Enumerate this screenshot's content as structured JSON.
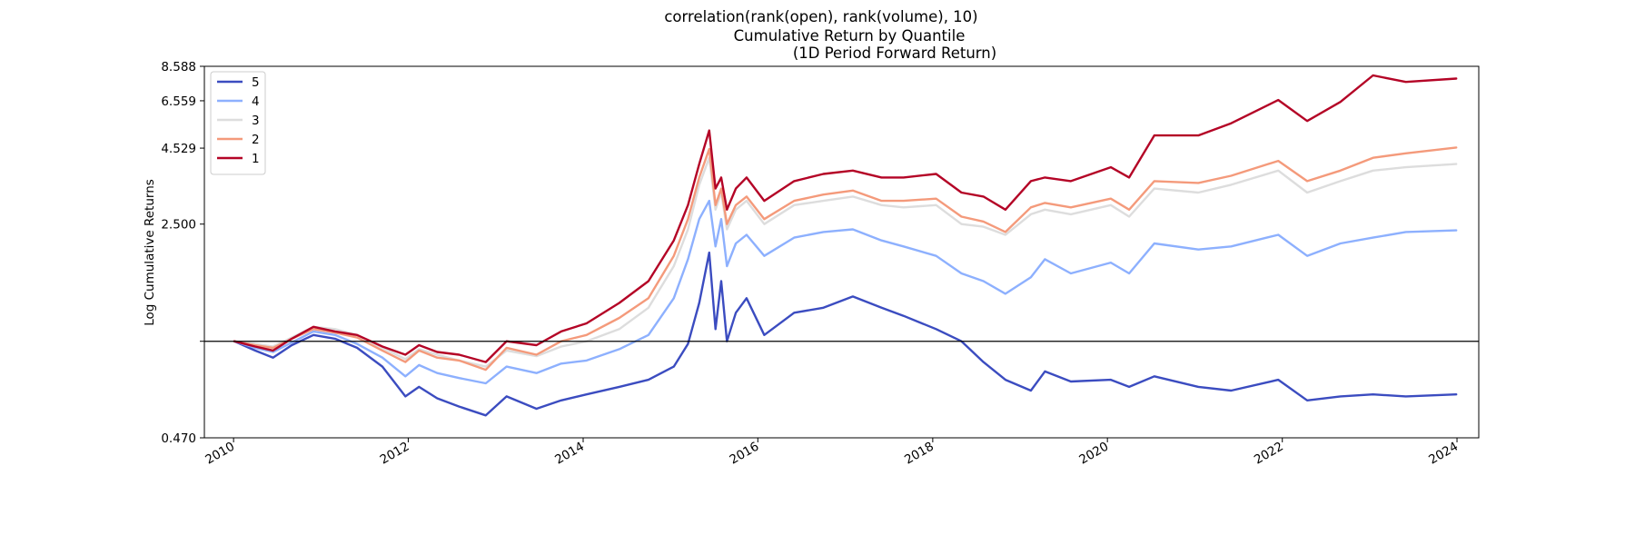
{
  "figure": {
    "suptitle": "correlation(rank(open), rank(volume), 10)",
    "title_line1": "Cumulative Return by Quantile",
    "title_line2": "(1D Period Forward Return)",
    "ylabel": "Log Cumulative Returns"
  },
  "chart_data": {
    "type": "line",
    "title": "Cumulative Return by Quantile (1D Period Forward Return)",
    "ylabel": "Log Cumulative Returns",
    "xlabel": "",
    "y_scale": "log",
    "ylim": [
      0.47,
      8.588
    ],
    "xlim": [
      "2009-09-01",
      "2024-04-01"
    ],
    "y_ticks": [
      {
        "value": 0.47,
        "label": "0.470"
      },
      {
        "value": 1.0,
        "label": ""
      },
      {
        "value": 2.5,
        "label": "2.500"
      },
      {
        "value": 4.529,
        "label": "4.529"
      },
      {
        "value": 6.559,
        "label": "6.559"
      },
      {
        "value": 8.588,
        "label": "8.588"
      }
    ],
    "x_ticks": [
      "2010",
      "2012",
      "2014",
      "2016",
      "2018",
      "2020",
      "2022",
      "2024"
    ],
    "reference_line": 1.0,
    "grid": false,
    "legend_position": "upper-left",
    "series": [
      {
        "name": "5",
        "color": "#3b4cc0",
        "points": [
          [
            "2010-01-04",
            1.0
          ],
          [
            "2010-04-01",
            0.93
          ],
          [
            "2010-06-15",
            0.88
          ],
          [
            "2010-09-01",
            0.97
          ],
          [
            "2010-12-01",
            1.05
          ],
          [
            "2011-03-01",
            1.02
          ],
          [
            "2011-06-01",
            0.95
          ],
          [
            "2011-09-15",
            0.82
          ],
          [
            "2011-12-20",
            0.65
          ],
          [
            "2012-02-15",
            0.7
          ],
          [
            "2012-05-01",
            0.64
          ],
          [
            "2012-08-01",
            0.6
          ],
          [
            "2012-11-20",
            0.56
          ],
          [
            "2013-02-15",
            0.65
          ],
          [
            "2013-06-20",
            0.59
          ],
          [
            "2013-10-01",
            0.63
          ],
          [
            "2014-01-15",
            0.66
          ],
          [
            "2014-06-01",
            0.7
          ],
          [
            "2014-10-01",
            0.74
          ],
          [
            "2015-01-15",
            0.82
          ],
          [
            "2015-03-15",
            0.98
          ],
          [
            "2015-05-01",
            1.35
          ],
          [
            "2015-06-12",
            2.0
          ],
          [
            "2015-07-08",
            1.1
          ],
          [
            "2015-08-01",
            1.6
          ],
          [
            "2015-08-25",
            1.0
          ],
          [
            "2015-10-01",
            1.25
          ],
          [
            "2015-11-15",
            1.4
          ],
          [
            "2016-01-28",
            1.05
          ],
          [
            "2016-06-01",
            1.25
          ],
          [
            "2016-10-01",
            1.3
          ],
          [
            "2017-02-01",
            1.42
          ],
          [
            "2017-06-01",
            1.3
          ],
          [
            "2017-09-01",
            1.22
          ],
          [
            "2018-01-15",
            1.1
          ],
          [
            "2018-05-01",
            1.0
          ],
          [
            "2018-08-01",
            0.85
          ],
          [
            "2018-11-01",
            0.74
          ],
          [
            "2019-02-15",
            0.68
          ],
          [
            "2019-04-15",
            0.79
          ],
          [
            "2019-08-01",
            0.73
          ],
          [
            "2020-01-15",
            0.74
          ],
          [
            "2020-04-01",
            0.7
          ],
          [
            "2020-07-15",
            0.76
          ],
          [
            "2021-01-15",
            0.7
          ],
          [
            "2021-06-01",
            0.68
          ],
          [
            "2021-12-15",
            0.74
          ],
          [
            "2022-04-15",
            0.63
          ],
          [
            "2022-09-01",
            0.65
          ],
          [
            "2023-01-15",
            0.66
          ],
          [
            "2023-06-01",
            0.65
          ],
          [
            "2023-12-29",
            0.66
          ]
        ]
      },
      {
        "name": "4",
        "color": "#8db0fe",
        "points": [
          [
            "2010-01-04",
            1.0
          ],
          [
            "2010-04-01",
            0.95
          ],
          [
            "2010-06-15",
            0.92
          ],
          [
            "2010-09-01",
            0.99
          ],
          [
            "2010-12-01",
            1.08
          ],
          [
            "2011-03-01",
            1.05
          ],
          [
            "2011-06-01",
            0.98
          ],
          [
            "2011-09-15",
            0.88
          ],
          [
            "2011-12-20",
            0.76
          ],
          [
            "2012-02-15",
            0.83
          ],
          [
            "2012-05-01",
            0.78
          ],
          [
            "2012-08-01",
            0.75
          ],
          [
            "2012-11-20",
            0.72
          ],
          [
            "2013-02-15",
            0.82
          ],
          [
            "2013-06-20",
            0.78
          ],
          [
            "2013-10-01",
            0.84
          ],
          [
            "2014-01-15",
            0.86
          ],
          [
            "2014-06-01",
            0.94
          ],
          [
            "2014-10-01",
            1.05
          ],
          [
            "2015-01-15",
            1.4
          ],
          [
            "2015-03-15",
            1.9
          ],
          [
            "2015-05-01",
            2.6
          ],
          [
            "2015-06-12",
            3.0
          ],
          [
            "2015-07-08",
            2.1
          ],
          [
            "2015-08-01",
            2.6
          ],
          [
            "2015-08-25",
            1.8
          ],
          [
            "2015-10-01",
            2.15
          ],
          [
            "2015-11-15",
            2.3
          ],
          [
            "2016-01-28",
            1.95
          ],
          [
            "2016-06-01",
            2.25
          ],
          [
            "2016-10-01",
            2.35
          ],
          [
            "2017-02-01",
            2.4
          ],
          [
            "2017-06-01",
            2.2
          ],
          [
            "2017-09-01",
            2.1
          ],
          [
            "2018-01-15",
            1.95
          ],
          [
            "2018-05-01",
            1.7
          ],
          [
            "2018-08-01",
            1.6
          ],
          [
            "2018-11-01",
            1.45
          ],
          [
            "2019-02-15",
            1.65
          ],
          [
            "2019-04-15",
            1.9
          ],
          [
            "2019-08-01",
            1.7
          ],
          [
            "2020-01-15",
            1.85
          ],
          [
            "2020-04-01",
            1.7
          ],
          [
            "2020-07-15",
            2.15
          ],
          [
            "2021-01-15",
            2.05
          ],
          [
            "2021-06-01",
            2.1
          ],
          [
            "2021-12-15",
            2.3
          ],
          [
            "2022-04-15",
            1.95
          ],
          [
            "2022-09-01",
            2.15
          ],
          [
            "2023-01-15",
            2.25
          ],
          [
            "2023-06-01",
            2.35
          ],
          [
            "2023-12-29",
            2.38
          ]
        ]
      },
      {
        "name": "3",
        "color": "#dddddd",
        "points": [
          [
            "2010-01-04",
            1.0
          ],
          [
            "2010-04-01",
            0.98
          ],
          [
            "2010-06-15",
            0.96
          ],
          [
            "2010-09-01",
            1.03
          ],
          [
            "2010-12-01",
            1.12
          ],
          [
            "2011-03-01",
            1.1
          ],
          [
            "2011-06-01",
            1.05
          ],
          [
            "2011-09-15",
            0.95
          ],
          [
            "2011-12-20",
            0.87
          ],
          [
            "2012-02-15",
            0.94
          ],
          [
            "2012-05-01",
            0.9
          ],
          [
            "2012-08-01",
            0.86
          ],
          [
            "2012-11-20",
            0.82
          ],
          [
            "2013-02-15",
            0.93
          ],
          [
            "2013-06-20",
            0.89
          ],
          [
            "2013-10-01",
            0.96
          ],
          [
            "2014-01-15",
            1.0
          ],
          [
            "2014-06-01",
            1.1
          ],
          [
            "2014-10-01",
            1.3
          ],
          [
            "2015-01-15",
            1.8
          ],
          [
            "2015-03-15",
            2.4
          ],
          [
            "2015-05-01",
            3.4
          ],
          [
            "2015-06-12",
            4.2
          ],
          [
            "2015-07-08",
            2.8
          ],
          [
            "2015-08-01",
            3.2
          ],
          [
            "2015-08-25",
            2.4
          ],
          [
            "2015-10-01",
            2.8
          ],
          [
            "2015-11-15",
            3.0
          ],
          [
            "2016-01-28",
            2.5
          ],
          [
            "2016-06-01",
            2.9
          ],
          [
            "2016-10-01",
            3.0
          ],
          [
            "2017-02-01",
            3.1
          ],
          [
            "2017-06-01",
            2.9
          ],
          [
            "2017-09-01",
            2.85
          ],
          [
            "2018-01-15",
            2.9
          ],
          [
            "2018-05-01",
            2.5
          ],
          [
            "2018-08-01",
            2.45
          ],
          [
            "2018-11-01",
            2.3
          ],
          [
            "2019-02-15",
            2.7
          ],
          [
            "2019-04-15",
            2.8
          ],
          [
            "2019-08-01",
            2.7
          ],
          [
            "2020-01-15",
            2.9
          ],
          [
            "2020-04-01",
            2.65
          ],
          [
            "2020-07-15",
            3.3
          ],
          [
            "2021-01-15",
            3.2
          ],
          [
            "2021-06-01",
            3.4
          ],
          [
            "2021-12-15",
            3.8
          ],
          [
            "2022-04-15",
            3.2
          ],
          [
            "2022-09-01",
            3.5
          ],
          [
            "2023-01-15",
            3.8
          ],
          [
            "2023-06-01",
            3.9
          ],
          [
            "2023-12-29",
            4.0
          ]
        ]
      },
      {
        "name": "2",
        "color": "#f49a7b",
        "points": [
          [
            "2010-01-04",
            1.0
          ],
          [
            "2010-04-01",
            0.97
          ],
          [
            "2010-06-15",
            0.95
          ],
          [
            "2010-09-01",
            1.02
          ],
          [
            "2010-12-01",
            1.1
          ],
          [
            "2011-03-01",
            1.07
          ],
          [
            "2011-06-01",
            1.03
          ],
          [
            "2011-09-15",
            0.93
          ],
          [
            "2011-12-20",
            0.85
          ],
          [
            "2012-02-15",
            0.93
          ],
          [
            "2012-05-01",
            0.88
          ],
          [
            "2012-08-01",
            0.86
          ],
          [
            "2012-11-20",
            0.8
          ],
          [
            "2013-02-15",
            0.95
          ],
          [
            "2013-06-20",
            0.9
          ],
          [
            "2013-10-01",
            1.0
          ],
          [
            "2014-01-15",
            1.05
          ],
          [
            "2014-06-01",
            1.2
          ],
          [
            "2014-10-01",
            1.4
          ],
          [
            "2015-01-15",
            1.95
          ],
          [
            "2015-03-15",
            2.6
          ],
          [
            "2015-05-01",
            3.6
          ],
          [
            "2015-06-12",
            4.5
          ],
          [
            "2015-07-08",
            2.9
          ],
          [
            "2015-08-01",
            3.3
          ],
          [
            "2015-08-25",
            2.5
          ],
          [
            "2015-10-01",
            2.9
          ],
          [
            "2015-11-15",
            3.1
          ],
          [
            "2016-01-28",
            2.6
          ],
          [
            "2016-06-01",
            3.0
          ],
          [
            "2016-10-01",
            3.15
          ],
          [
            "2017-02-01",
            3.25
          ],
          [
            "2017-06-01",
            3.0
          ],
          [
            "2017-09-01",
            3.0
          ],
          [
            "2018-01-15",
            3.05
          ],
          [
            "2018-05-01",
            2.65
          ],
          [
            "2018-08-01",
            2.55
          ],
          [
            "2018-11-01",
            2.35
          ],
          [
            "2019-02-15",
            2.85
          ],
          [
            "2019-04-15",
            2.95
          ],
          [
            "2019-08-01",
            2.85
          ],
          [
            "2020-01-15",
            3.05
          ],
          [
            "2020-04-01",
            2.8
          ],
          [
            "2020-07-15",
            3.5
          ],
          [
            "2021-01-15",
            3.45
          ],
          [
            "2021-06-01",
            3.65
          ],
          [
            "2021-12-15",
            4.1
          ],
          [
            "2022-04-15",
            3.5
          ],
          [
            "2022-09-01",
            3.8
          ],
          [
            "2023-01-15",
            4.2
          ],
          [
            "2023-06-01",
            4.35
          ],
          [
            "2023-12-29",
            4.55
          ]
        ]
      },
      {
        "name": "1",
        "color": "#b40426",
        "points": [
          [
            "2010-01-04",
            1.0
          ],
          [
            "2010-04-01",
            0.96
          ],
          [
            "2010-06-15",
            0.93
          ],
          [
            "2010-09-01",
            1.02
          ],
          [
            "2010-12-01",
            1.12
          ],
          [
            "2011-03-01",
            1.08
          ],
          [
            "2011-06-01",
            1.05
          ],
          [
            "2011-09-15",
            0.96
          ],
          [
            "2011-12-20",
            0.9
          ],
          [
            "2012-02-15",
            0.97
          ],
          [
            "2012-05-01",
            0.92
          ],
          [
            "2012-08-01",
            0.9
          ],
          [
            "2012-11-20",
            0.85
          ],
          [
            "2013-02-15",
            1.0
          ],
          [
            "2013-06-20",
            0.97
          ],
          [
            "2013-10-01",
            1.08
          ],
          [
            "2014-01-15",
            1.15
          ],
          [
            "2014-06-01",
            1.35
          ],
          [
            "2014-10-01",
            1.6
          ],
          [
            "2015-01-15",
            2.2
          ],
          [
            "2015-03-15",
            2.9
          ],
          [
            "2015-05-01",
            4.0
          ],
          [
            "2015-06-12",
            5.2
          ],
          [
            "2015-07-08",
            3.3
          ],
          [
            "2015-08-01",
            3.6
          ],
          [
            "2015-08-25",
            2.8
          ],
          [
            "2015-10-01",
            3.3
          ],
          [
            "2015-11-15",
            3.6
          ],
          [
            "2016-01-28",
            3.0
          ],
          [
            "2016-06-01",
            3.5
          ],
          [
            "2016-10-01",
            3.7
          ],
          [
            "2017-02-01",
            3.8
          ],
          [
            "2017-06-01",
            3.6
          ],
          [
            "2017-09-01",
            3.6
          ],
          [
            "2018-01-15",
            3.7
          ],
          [
            "2018-05-01",
            3.2
          ],
          [
            "2018-08-01",
            3.1
          ],
          [
            "2018-11-01",
            2.8
          ],
          [
            "2019-02-15",
            3.5
          ],
          [
            "2019-04-15",
            3.6
          ],
          [
            "2019-08-01",
            3.5
          ],
          [
            "2020-01-15",
            3.9
          ],
          [
            "2020-04-01",
            3.6
          ],
          [
            "2020-07-15",
            5.0
          ],
          [
            "2021-01-15",
            5.0
          ],
          [
            "2021-06-01",
            5.5
          ],
          [
            "2021-12-15",
            6.6
          ],
          [
            "2022-04-15",
            5.6
          ],
          [
            "2022-09-01",
            6.5
          ],
          [
            "2023-01-15",
            8.0
          ],
          [
            "2023-06-01",
            7.6
          ],
          [
            "2023-12-29",
            7.8
          ]
        ]
      }
    ]
  }
}
